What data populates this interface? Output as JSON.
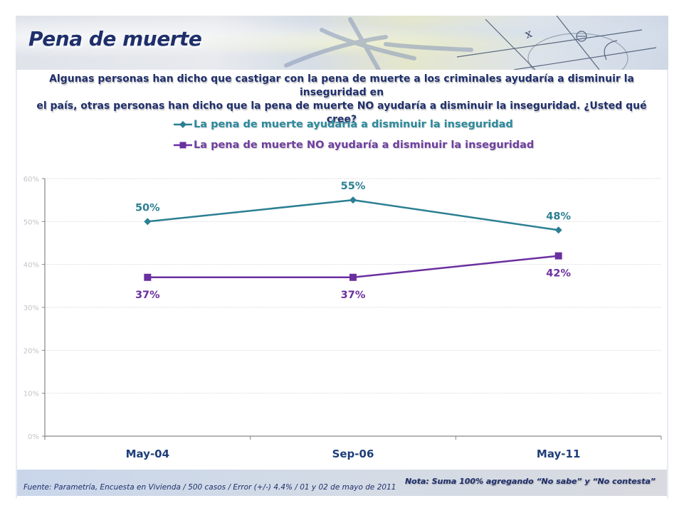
{
  "header": {
    "title": "Pena de muerte",
    "question_line1": "Algunas personas han dicho que castigar con la pena de muerte a los criminales ayudaría a disminuir la inseguridad en",
    "question_line2": "el país, otras personas han dicho que la pena de muerte NO ayudaría a disminuir la inseguridad. ¿Usted qué cree?"
  },
  "footer": {
    "source": "Fuente: Parametría, Encuesta en Vivienda / 500 casos / Error (+/-) 4.4% / 01 y 02 de mayo de 2011",
    "note": "Nota: Suma 100% agregando “No sabe” y “No contesta”"
  },
  "chart_data": {
    "type": "line",
    "title": "",
    "xlabel": "",
    "ylabel": "",
    "categories": [
      "May-04",
      "Sep-06",
      "May-11"
    ],
    "ylim": [
      0,
      60
    ],
    "yticks": [
      0,
      10,
      20,
      30,
      40,
      50,
      60
    ],
    "ytick_labels": [
      "0%",
      "10%",
      "20%",
      "30%",
      "40%",
      "50%",
      "60%"
    ],
    "grid": true,
    "legend_position": "top-center",
    "series": [
      {
        "name": "La pena de muerte ayudaría a disminuir la inseguridad",
        "values": [
          50,
          55,
          48
        ],
        "labels": [
          "50%",
          "55%",
          "48%"
        ],
        "marker": "diamond",
        "color": "#2b7f92",
        "label_position": "above"
      },
      {
        "name": "La pena de muerte NO ayudaría a disminuir la inseguridad",
        "values": [
          37,
          37,
          42
        ],
        "labels": [
          "37%",
          "37%",
          "42%"
        ],
        "marker": "square",
        "color": "#6a2fa0",
        "label_position": "below"
      }
    ]
  }
}
